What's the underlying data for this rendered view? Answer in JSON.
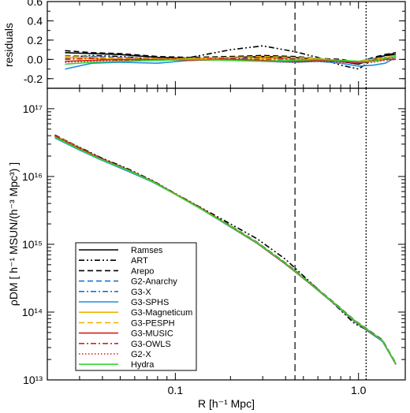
{
  "chart_data": [
    {
      "type": "line",
      "panel": "residuals",
      "ylabel": "residuals",
      "xlabel": "",
      "xscale": "log",
      "xlim": [
        0.02,
        1.8
      ],
      "ylim": [
        -0.3,
        0.6
      ],
      "yticks": [
        -0.2,
        0.0,
        0.2,
        0.4,
        0.6
      ],
      "ytick_labels": [
        "-0.2",
        "0.0",
        "0.2",
        "0.4",
        "0.6"
      ],
      "vlines": [
        0.45,
        1.1
      ],
      "series": [
        {
          "name": "Ramses",
          "x": [
            0.025,
            0.035,
            0.05,
            0.08,
            0.12,
            0.2,
            0.3,
            0.45,
            0.6,
            0.8,
            1.0,
            1.2,
            1.4,
            1.6
          ],
          "y": [
            0.07,
            0.06,
            0.05,
            0.02,
            0.01,
            0.02,
            0.03,
            0.02,
            0.0,
            -0.02,
            -0.05,
            0.0,
            0.04,
            0.05
          ]
        },
        {
          "name": "ART",
          "x": [
            0.025,
            0.035,
            0.05,
            0.08,
            0.12,
            0.2,
            0.3,
            0.45,
            0.6,
            0.8,
            1.0,
            1.2,
            1.4,
            1.6
          ],
          "y": [
            0.02,
            0.04,
            0.03,
            0.0,
            0.02,
            0.1,
            0.14,
            0.08,
            0.02,
            -0.06,
            -0.1,
            0.0,
            0.05,
            0.06
          ]
        },
        {
          "name": "Arepo",
          "x": [
            0.025,
            0.035,
            0.05,
            0.08,
            0.12,
            0.2,
            0.3,
            0.45,
            0.6,
            0.8,
            1.0,
            1.2,
            1.4,
            1.6
          ],
          "y": [
            0.09,
            0.07,
            0.06,
            0.03,
            0.02,
            0.03,
            0.04,
            0.03,
            0.01,
            0.0,
            -0.03,
            0.02,
            0.05,
            0.07
          ]
        },
        {
          "name": "G2-Anarchy",
          "x": [
            0.025,
            0.035,
            0.05,
            0.08,
            0.12,
            0.2,
            0.3,
            0.45,
            0.6,
            0.8,
            1.0,
            1.2,
            1.4,
            1.6
          ],
          "y": [
            0.04,
            0.03,
            0.02,
            0.01,
            0.0,
            0.01,
            0.02,
            0.01,
            0.0,
            -0.01,
            -0.02,
            0.01,
            0.02,
            0.03
          ]
        },
        {
          "name": "G3-X",
          "x": [
            0.025,
            0.035,
            0.05,
            0.08,
            0.12,
            0.2,
            0.3,
            0.45,
            0.6,
            0.8,
            1.0,
            1.2,
            1.4,
            1.6
          ],
          "y": [
            0.01,
            0.02,
            0.0,
            -0.01,
            0.0,
            0.01,
            0.0,
            -0.01,
            0.0,
            -0.02,
            -0.04,
            -0.01,
            0.02,
            0.03
          ]
        },
        {
          "name": "G3-SPHS",
          "x": [
            0.025,
            0.035,
            0.05,
            0.08,
            0.12,
            0.2,
            0.3,
            0.45,
            0.6,
            0.8,
            1.0,
            1.2,
            1.4,
            1.6
          ],
          "y": [
            -0.1,
            -0.04,
            -0.03,
            -0.04,
            -0.01,
            0.0,
            -0.02,
            -0.03,
            -0.02,
            -0.04,
            -0.07,
            -0.06,
            -0.04,
            0.02
          ]
        },
        {
          "name": "G3-Magneticum",
          "x": [
            0.025,
            0.035,
            0.05,
            0.08,
            0.12,
            0.2,
            0.3,
            0.45,
            0.6,
            0.8,
            1.0,
            1.2,
            1.4,
            1.6
          ],
          "y": [
            0.02,
            0.01,
            0.0,
            0.0,
            0.01,
            0.02,
            0.01,
            0.0,
            0.0,
            -0.01,
            -0.02,
            0.0,
            0.01,
            0.02
          ]
        },
        {
          "name": "G3-PESPH",
          "x": [
            0.025,
            0.035,
            0.05,
            0.08,
            0.12,
            0.2,
            0.3,
            0.45,
            0.6,
            0.8,
            1.0,
            1.2,
            1.4,
            1.6
          ],
          "y": [
            0.03,
            0.02,
            0.01,
            0.01,
            0.0,
            0.02,
            0.03,
            0.02,
            0.01,
            -0.01,
            -0.03,
            0.0,
            0.02,
            0.04
          ]
        },
        {
          "name": "G3-MUSIC",
          "x": [
            0.025,
            0.035,
            0.05,
            0.08,
            0.12,
            0.2,
            0.3,
            0.45,
            0.6,
            0.8,
            1.0,
            1.2,
            1.4,
            1.6
          ],
          "y": [
            -0.02,
            -0.01,
            0.0,
            0.0,
            -0.01,
            0.0,
            -0.01,
            -0.02,
            -0.01,
            -0.02,
            -0.03,
            -0.02,
            0.0,
            0.0
          ]
        },
        {
          "name": "G3-OWLS",
          "x": [
            0.025,
            0.035,
            0.05,
            0.08,
            0.12,
            0.2,
            0.3,
            0.45,
            0.6,
            0.8,
            1.0,
            1.2,
            1.4,
            1.6
          ],
          "y": [
            0.0,
            0.01,
            -0.01,
            0.0,
            0.0,
            0.01,
            0.02,
            0.0,
            -0.01,
            -0.02,
            -0.03,
            -0.01,
            0.01,
            0.02
          ]
        },
        {
          "name": "G2-X",
          "x": [
            0.025,
            0.035,
            0.05,
            0.08,
            0.12,
            0.2,
            0.3,
            0.45,
            0.6,
            0.8,
            1.0,
            1.2,
            1.4,
            1.6
          ],
          "y": [
            -0.03,
            -0.02,
            -0.01,
            -0.01,
            0.0,
            -0.01,
            -0.02,
            -0.03,
            -0.02,
            -0.03,
            -0.04,
            -0.03,
            -0.01,
            0.0
          ]
        },
        {
          "name": "Hydra",
          "x": [
            0.025,
            0.035,
            0.05,
            0.08,
            0.12,
            0.2,
            0.3,
            0.45,
            0.6,
            0.8,
            1.0,
            1.2,
            1.4,
            1.6
          ],
          "y": [
            -0.05,
            -0.03,
            -0.02,
            -0.01,
            0.0,
            -0.01,
            -0.02,
            -0.01,
            0.0,
            -0.01,
            -0.02,
            -0.02,
            0.01,
            0.03
          ]
        }
      ]
    },
    {
      "type": "line",
      "panel": "density-profile",
      "xlabel": "R [h⁻¹ Mpc]",
      "ylabel": "ρDM [ h⁻¹ MSUN/(h⁻³ Mpc³) ]",
      "xscale": "log",
      "yscale": "log",
      "xlim": [
        0.02,
        1.8
      ],
      "ylim": [
        10000000000000.0,
        2e+17
      ],
      "xticks": [
        0.1,
        1.0
      ],
      "xtick_labels": [
        "0.1",
        "1.0"
      ],
      "yticks": [
        10000000000000.0,
        100000000000000.0,
        1000000000000000.0,
        1e+16,
        1e+17
      ],
      "ytick_labels": [
        "10¹³",
        "10¹⁴",
        "10¹⁵",
        "10¹⁶",
        "10¹⁷"
      ],
      "vlines": [
        0.45,
        1.1
      ],
      "legend_position": "lower-left",
      "x": [
        0.022,
        0.03,
        0.04,
        0.055,
        0.075,
        0.1,
        0.14,
        0.2,
        0.28,
        0.4,
        0.55,
        0.75,
        0.95,
        1.15,
        1.35,
        1.6
      ],
      "series": [
        {
          "name": "Ramses",
          "values": [
            4e+16,
            2.6e+16,
            1.8e+16,
            1.25e+16,
            8500000000000000.0,
            5500000000000000.0,
            3300000000000000.0,
            1850000000000000.0,
            1050000000000000.0,
            520000000000000.0,
            260000000000000.0,
            130000000000000.0,
            75000000000000.0,
            52000000000000.0,
            38000000000000.0,
            17000000000000.0
          ]
        },
        {
          "name": "ART",
          "values": [
            4e+16,
            2.7e+16,
            1.85e+16,
            1.3e+16,
            8700000000000000.0,
            5600000000000000.0,
            3400000000000000.0,
            2000000000000000.0,
            1200000000000000.0,
            600000000000000.0,
            270000000000000.0,
            125000000000000.0,
            68000000000000.0,
            52000000000000.0,
            38000000000000.0,
            17000000000000.0
          ]
        },
        {
          "name": "Arepo",
          "values": [
            4.1e+16,
            2.65e+16,
            1.82e+16,
            1.27e+16,
            8600000000000000.0,
            5550000000000000.0,
            3350000000000000.0,
            1880000000000000.0,
            1070000000000000.0,
            530000000000000.0,
            265000000000000.0,
            132000000000000.0,
            76000000000000.0,
            53000000000000.0,
            39000000000000.0,
            17500000000000.0
          ]
        },
        {
          "name": "G2-Anarchy",
          "values": [
            4e+16,
            2.6e+16,
            1.8e+16,
            1.25e+16,
            8500000000000000.0,
            5500000000000000.0,
            3300000000000000.0,
            1850000000000000.0,
            1050000000000000.0,
            520000000000000.0,
            260000000000000.0,
            130000000000000.0,
            75000000000000.0,
            52000000000000.0,
            38000000000000.0,
            17000000000000.0
          ]
        },
        {
          "name": "G3-X",
          "values": [
            4e+16,
            2.6e+16,
            1.8e+16,
            1.25e+16,
            8500000000000000.0,
            5500000000000000.0,
            3300000000000000.0,
            1850000000000000.0,
            1050000000000000.0,
            520000000000000.0,
            260000000000000.0,
            130000000000000.0,
            75000000000000.0,
            52000000000000.0,
            38000000000000.0,
            17000000000000.0
          ]
        },
        {
          "name": "G3-SPHS",
          "values": [
            3.7e+16,
            2.45e+16,
            1.72e+16,
            1.2e+16,
            8300000000000000.0,
            5450000000000000.0,
            3250000000000000.0,
            1800000000000000.0,
            1030000000000000.0,
            510000000000000.0,
            255000000000000.0,
            127000000000000.0,
            73000000000000.0,
            50000000000000.0,
            37000000000000.0,
            17000000000000.0
          ]
        },
        {
          "name": "G3-Magneticum",
          "values": [
            4e+16,
            2.6e+16,
            1.8e+16,
            1.25e+16,
            8500000000000000.0,
            5500000000000000.0,
            3300000000000000.0,
            1850000000000000.0,
            1050000000000000.0,
            520000000000000.0,
            260000000000000.0,
            130000000000000.0,
            75000000000000.0,
            52000000000000.0,
            38000000000000.0,
            17000000000000.0
          ]
        },
        {
          "name": "G3-PESPH",
          "values": [
            4e+16,
            2.62e+16,
            1.8e+16,
            1.26e+16,
            8500000000000000.0,
            5550000000000000.0,
            3320000000000000.0,
            1860000000000000.0,
            1060000000000000.0,
            520000000000000.0,
            260000000000000.0,
            130000000000000.0,
            75000000000000.0,
            52000000000000.0,
            38000000000000.0,
            17200000000000.0
          ]
        },
        {
          "name": "G3-MUSIC",
          "values": [
            3.9e+16,
            2.55e+16,
            1.8e+16,
            1.25e+16,
            8400000000000000.0,
            5500000000000000.0,
            3280000000000000.0,
            1830000000000000.0,
            1040000000000000.0,
            510000000000000.0,
            258000000000000.0,
            129000000000000.0,
            74000000000000.0,
            51000000000000.0,
            38000000000000.0,
            17000000000000.0
          ]
        },
        {
          "name": "G3-OWLS",
          "values": [
            4e+16,
            2.6e+16,
            1.8e+16,
            1.25e+16,
            8500000000000000.0,
            5520000000000000.0,
            3320000000000000.0,
            1850000000000000.0,
            1040000000000000.0,
            515000000000000.0,
            258000000000000.0,
            129000000000000.0,
            74000000000000.0,
            52000000000000.0,
            38000000000000.0,
            17000000000000.0
          ]
        },
        {
          "name": "G2-X",
          "values": [
            3.9e+16,
            2.55e+16,
            1.78e+16,
            1.24e+16,
            8500000000000000.0,
            5450000000000000.0,
            3260000000000000.0,
            1820000000000000.0,
            1030000000000000.0,
            510000000000000.0,
            256000000000000.0,
            128000000000000.0,
            74000000000000.0,
            51000000000000.0,
            38000000000000.0,
            17000000000000.0
          ]
        },
        {
          "name": "Hydra",
          "values": [
            3.8e+16,
            2.5e+16,
            1.75e+16,
            1.24e+16,
            8400000000000000.0,
            5450000000000000.0,
            3250000000000000.0,
            1840000000000000.0,
            1050000000000000.0,
            520000000000000.0,
            260000000000000.0,
            130000000000000.0,
            75000000000000.0,
            52000000000000.0,
            38000000000000.0,
            17200000000000.0
          ]
        }
      ]
    }
  ],
  "series_styles": {
    "Ramses": {
      "color": "#000000",
      "dash": "solid"
    },
    "ART": {
      "color": "#000000",
      "dash": "dashdotdot"
    },
    "Arepo": {
      "color": "#000000",
      "dash": "dash"
    },
    "G2-Anarchy": {
      "color": "#1f6fd1",
      "dash": "dash"
    },
    "G3-X": {
      "color": "#1f6fd1",
      "dash": "dashdot"
    },
    "G3-SPHS": {
      "color": "#1f8ee0",
      "dash": "solid"
    },
    "G3-Magneticum": {
      "color": "#f0b400",
      "dash": "solid"
    },
    "G3-PESPH": {
      "color": "#f0b400",
      "dash": "dash"
    },
    "G3-MUSIC": {
      "color": "#d42020",
      "dash": "solid"
    },
    "G3-OWLS": {
      "color": "#d42020",
      "dash": "dashdot"
    },
    "G2-X": {
      "color": "#d42020",
      "dash": "dot"
    },
    "Hydra": {
      "color": "#33d633",
      "dash": "solid"
    }
  }
}
